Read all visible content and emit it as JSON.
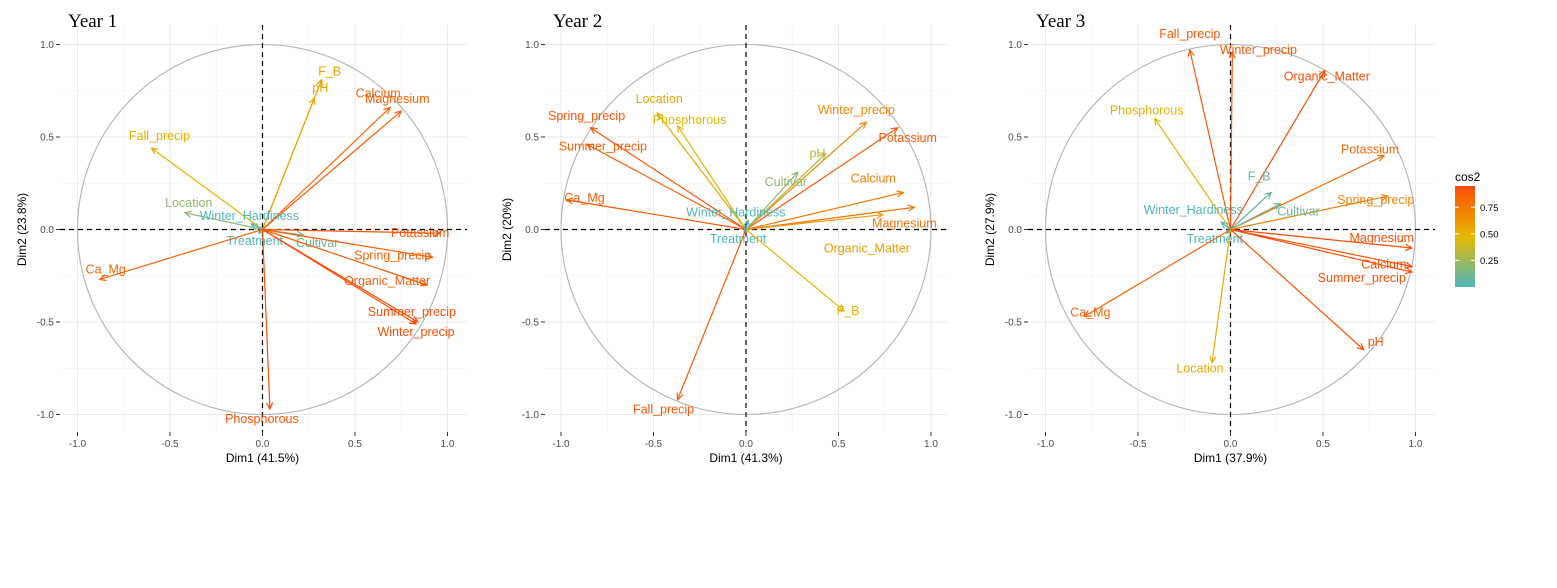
{
  "legend": {
    "title": "cos2",
    "ticks": [
      0.25,
      0.5,
      0.75
    ],
    "tick_labels": [
      "0.25",
      "0.50",
      "0.75"
    ],
    "range": [
      0.0,
      0.95
    ],
    "gradient": [
      "#4db6bd",
      "#e7b800",
      "#fc4e07"
    ]
  },
  "chart_data": [
    {
      "type": "pca-correlation-circle",
      "title": "Year 1",
      "xlabel": "Dim1 (41.5%)",
      "ylabel": "Dim2 (23.8%)",
      "xlim": [
        -1.0,
        1.0
      ],
      "ylim": [
        -1.0,
        1.0
      ],
      "x_ticks": [
        "-1.0",
        "-0.5",
        "0.0",
        "0.5",
        "1.0"
      ],
      "y_ticks": [
        "-1.0",
        "-0.5",
        "0.0",
        "0.5",
        "1.0"
      ],
      "grid": true,
      "variables": [
        {
          "name": "F_B",
          "x": 0.32,
          "y": 0.81,
          "cos2": 0.6
        },
        {
          "name": "pH",
          "x": 0.28,
          "y": 0.71,
          "cos2": 0.55
        },
        {
          "name": "Calcium",
          "x": 0.69,
          "y": 0.66,
          "cos2": 0.85
        },
        {
          "name": "Magnesium",
          "x": 0.75,
          "y": 0.64,
          "cos2": 0.88
        },
        {
          "name": "Fall_precip",
          "x": -0.6,
          "y": 0.44,
          "cos2": 0.52
        },
        {
          "name": "Location",
          "x": -0.42,
          "y": 0.09,
          "cos2": 0.2
        },
        {
          "name": "Winter_Hardiness",
          "x": -0.06,
          "y": 0.03,
          "cos2": 0.01
        },
        {
          "name": "Treatment",
          "x": -0.02,
          "y": -0.02,
          "cos2": 0.01
        },
        {
          "name": "Cultivar",
          "x": 0.22,
          "y": -0.03,
          "cos2": 0.1
        },
        {
          "name": "Potassium",
          "x": 0.96,
          "y": -0.02,
          "cos2": 0.92
        },
        {
          "name": "Spring_precip",
          "x": 0.92,
          "y": -0.15,
          "cos2": 0.87
        },
        {
          "name": "Organic_Matter",
          "x": 0.89,
          "y": -0.3,
          "cos2": 0.88
        },
        {
          "name": "Summer_precip",
          "x": 0.84,
          "y": -0.5,
          "cos2": 0.95
        },
        {
          "name": "Winter_precip",
          "x": 0.83,
          "y": -0.51,
          "cos2": 0.95
        },
        {
          "name": "Ca_Mg",
          "x": -0.88,
          "y": -0.27,
          "cos2": 0.85
        },
        {
          "name": "Phosphorous",
          "x": 0.04,
          "y": -0.97,
          "cos2": 0.94
        }
      ]
    },
    {
      "type": "pca-correlation-circle",
      "title": "Year 2",
      "xlabel": "Dim1 (41.3%)",
      "ylabel": "Dim2 (20%)",
      "xlim": [
        -1.0,
        1.0
      ],
      "ylim": [
        -1.0,
        1.0
      ],
      "x_ticks": [
        "-1.0",
        "-0.5",
        "0.0",
        "0.5",
        "1.0"
      ],
      "y_ticks": [
        "-1.0",
        "-0.5",
        "0.0",
        "0.5",
        "1.0"
      ],
      "grid": true,
      "variables": [
        {
          "name": "Location",
          "x": -0.48,
          "y": 0.63,
          "cos2": 0.55
        },
        {
          "name": "Phosphorous",
          "x": -0.37,
          "y": 0.56,
          "cos2": 0.45
        },
        {
          "name": "Spring_precip",
          "x": -0.84,
          "y": 0.55,
          "cos2": 0.92
        },
        {
          "name": "Summer_precip",
          "x": -0.86,
          "y": 0.46,
          "cos2": 0.88
        },
        {
          "name": "Ca_Mg",
          "x": -0.97,
          "y": 0.16,
          "cos2": 0.9
        },
        {
          "name": "Winter_precip",
          "x": 0.65,
          "y": 0.58,
          "cos2": 0.7
        },
        {
          "name": "Potassium",
          "x": 0.82,
          "y": 0.55,
          "cos2": 0.9
        },
        {
          "name": "pH",
          "x": 0.43,
          "y": 0.41,
          "cos2": 0.32
        },
        {
          "name": "Cultivar",
          "x": 0.28,
          "y": 0.31,
          "cos2": 0.2
        },
        {
          "name": "Calcium",
          "x": 0.85,
          "y": 0.2,
          "cos2": 0.75
        },
        {
          "name": "Magnesium",
          "x": 0.91,
          "y": 0.12,
          "cos2": 0.8
        },
        {
          "name": "Organic_Matter",
          "x": 0.74,
          "y": 0.08,
          "cos2": 0.6
        },
        {
          "name": "Winter_Hardiness",
          "x": 0.01,
          "y": 0.05,
          "cos2": 0.01
        },
        {
          "name": "Treatment",
          "x": -0.01,
          "y": -0.02,
          "cos2": 0.01
        },
        {
          "name": "F_B",
          "x": 0.53,
          "y": -0.44,
          "cos2": 0.5
        },
        {
          "name": "Fall_precip",
          "x": -0.37,
          "y": -0.92,
          "cos2": 0.9
        }
      ]
    },
    {
      "type": "pca-correlation-circle",
      "title": "Year 3",
      "xlabel": "Dim1 (37.9%)",
      "ylabel": "Dim2 (27.9%)",
      "xlim": [
        -1.0,
        1.0
      ],
      "ylim": [
        -1.0,
        1.0
      ],
      "x_ticks": [
        "-1.0",
        "-0.5",
        "0.0",
        "0.5",
        "1.0"
      ],
      "y_ticks": [
        "-1.0",
        "-0.5",
        "0.0",
        "0.5",
        "1.0"
      ],
      "grid": true,
      "variables": [
        {
          "name": "Fall_precip",
          "x": -0.22,
          "y": 0.97,
          "cos2": 0.9
        },
        {
          "name": "Winter_precip",
          "x": 0.01,
          "y": 0.96,
          "cos2": 0.9
        },
        {
          "name": "Organic_Matter",
          "x": 0.51,
          "y": 0.86,
          "cos2": 0.95
        },
        {
          "name": "Phosphorous",
          "x": -0.41,
          "y": 0.6,
          "cos2": 0.5
        },
        {
          "name": "Potassium",
          "x": 0.83,
          "y": 0.4,
          "cos2": 0.82
        },
        {
          "name": "Spring_precip",
          "x": 0.85,
          "y": 0.18,
          "cos2": 0.72
        },
        {
          "name": "F_B",
          "x": 0.22,
          "y": 0.2,
          "cos2": 0.08
        },
        {
          "name": "Cultivar",
          "x": 0.27,
          "y": 0.14,
          "cos2": 0.1
        },
        {
          "name": "Winter_Hardiness",
          "x": -0.05,
          "y": 0.04,
          "cos2": 0.01
        },
        {
          "name": "Treatment",
          "x": -0.02,
          "y": -0.02,
          "cos2": 0.01
        },
        {
          "name": "Magnesium",
          "x": 0.98,
          "y": -0.1,
          "cos2": 0.95
        },
        {
          "name": "Calcium",
          "x": 0.98,
          "y": -0.2,
          "cos2": 0.95
        },
        {
          "name": "Summer_precip",
          "x": 0.98,
          "y": -0.23,
          "cos2": 0.95
        },
        {
          "name": "pH",
          "x": 0.72,
          "y": -0.65,
          "cos2": 0.92
        },
        {
          "name": "Ca_Mg",
          "x": -0.79,
          "y": -0.47,
          "cos2": 0.85
        },
        {
          "name": "Location",
          "x": -0.1,
          "y": -0.72,
          "cos2": 0.55
        }
      ]
    }
  ]
}
